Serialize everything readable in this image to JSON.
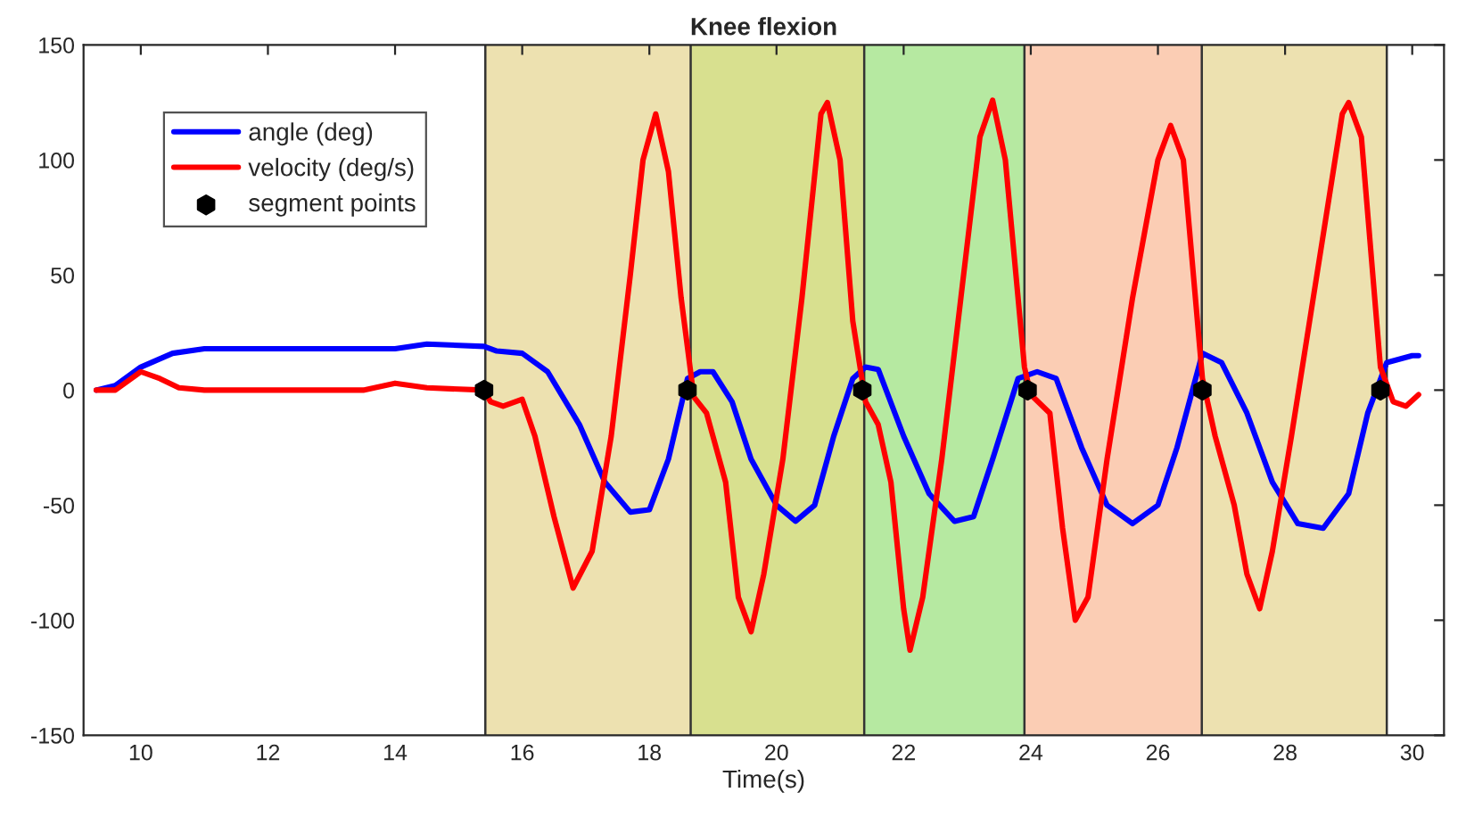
{
  "chart_data": {
    "type": "line",
    "title": "Knee flexion",
    "xlabel": "Time(s)",
    "xlim": [
      9.1,
      30.5
    ],
    "ylim": [
      -150,
      150
    ],
    "xticks": [
      10,
      12,
      14,
      16,
      18,
      20,
      22,
      24,
      26,
      28,
      30
    ],
    "yticks": [
      -150,
      -100,
      -50,
      0,
      50,
      100,
      150
    ],
    "grid": false,
    "legend": "top left",
    "series": [
      {
        "name": "angle (deg)",
        "color": "#0000ff",
        "marker": "none",
        "x": [
          9.3,
          9.6,
          10.0,
          10.5,
          11.0,
          14.0,
          14.5,
          15.4,
          15.6,
          16.0,
          16.4,
          16.9,
          17.3,
          17.7,
          18.0,
          18.3,
          18.6,
          18.8,
          19.0,
          19.3,
          19.6,
          20.0,
          20.3,
          20.6,
          20.9,
          21.2,
          21.4,
          21.6,
          22.0,
          22.4,
          22.8,
          23.1,
          23.4,
          23.8,
          24.1,
          24.4,
          24.8,
          25.2,
          25.6,
          26.0,
          26.3,
          26.7,
          27.0,
          27.4,
          27.8,
          28.2,
          28.6,
          29.0,
          29.3,
          29.6,
          30.0,
          30.1
        ],
        "values": [
          0,
          2,
          10,
          16,
          18,
          18,
          20,
          19,
          17,
          16,
          8,
          -15,
          -40,
          -53,
          -52,
          -30,
          5,
          8,
          8,
          -5,
          -30,
          -50,
          -57,
          -50,
          -20,
          5,
          10,
          9,
          -20,
          -45,
          -57,
          -55,
          -30,
          5,
          8,
          5,
          -25,
          -50,
          -58,
          -50,
          -25,
          16,
          12,
          -10,
          -40,
          -58,
          -60,
          -45,
          -10,
          12,
          15,
          15
        ]
      },
      {
        "name": "velocity (deg/s)",
        "color": "#ff0000",
        "marker": "none",
        "x": [
          9.3,
          9.6,
          10.0,
          10.3,
          10.6,
          11.0,
          13.5,
          14.0,
          14.5,
          15.4,
          15.5,
          15.7,
          16.0,
          16.2,
          16.5,
          16.8,
          17.1,
          17.4,
          17.7,
          17.9,
          18.1,
          18.3,
          18.5,
          18.7,
          18.9,
          19.2,
          19.4,
          19.6,
          19.8,
          20.1,
          20.4,
          20.7,
          20.8,
          21.0,
          21.2,
          21.4,
          21.6,
          21.8,
          22.0,
          22.1,
          22.3,
          22.6,
          22.9,
          23.2,
          23.4,
          23.6,
          23.9,
          24.0,
          24.3,
          24.5,
          24.7,
          24.9,
          25.2,
          25.6,
          26.0,
          26.2,
          26.4,
          26.7,
          26.9,
          27.2,
          27.4,
          27.6,
          27.8,
          28.1,
          28.5,
          28.9,
          29.0,
          29.2,
          29.5,
          29.7,
          29.9,
          30.1
        ],
        "values": [
          0,
          0,
          8,
          5,
          1,
          0,
          0,
          3,
          1,
          0,
          -5,
          -7,
          -4,
          -20,
          -55,
          -86,
          -70,
          -20,
          50,
          100,
          120,
          95,
          40,
          -3,
          -10,
          -40,
          -90,
          -105,
          -80,
          -30,
          40,
          120,
          125,
          100,
          30,
          -5,
          -15,
          -40,
          -95,
          -113,
          -90,
          -30,
          40,
          110,
          126,
          100,
          10,
          -2,
          -10,
          -60,
          -100,
          -90,
          -30,
          40,
          100,
          115,
          100,
          5,
          -20,
          -50,
          -80,
          -95,
          -70,
          -20,
          50,
          120,
          125,
          110,
          10,
          -5,
          -7,
          -2
        ]
      },
      {
        "name": "segment points",
        "color": "#000000",
        "type": "scatter",
        "marker": "star",
        "x": [
          15.4,
          18.6,
          21.35,
          23.95,
          26.7,
          29.5
        ],
        "values": [
          0,
          0,
          0,
          0,
          0,
          0
        ]
      }
    ],
    "bands": [
      {
        "axis": "x",
        "from": 15.42,
        "to": 18.65,
        "color": "#ede1b0"
      },
      {
        "axis": "x",
        "from": 18.65,
        "to": 21.38,
        "color": "#d8e08f"
      },
      {
        "axis": "x",
        "from": 21.38,
        "to": 23.9,
        "color": "#b6e9a1"
      },
      {
        "axis": "x",
        "from": 23.9,
        "to": 26.69,
        "color": "#fbcdb4"
      },
      {
        "axis": "x",
        "from": 26.69,
        "to": 29.6,
        "color": "#ede1b0"
      }
    ],
    "ref_lines": [
      {
        "axis": "x",
        "value": 15.42,
        "color": "#333333",
        "line_style": "solid"
      },
      {
        "axis": "x",
        "value": 18.65,
        "color": "#333333",
        "line_style": "solid"
      },
      {
        "axis": "x",
        "value": 21.38,
        "color": "#333333",
        "line_style": "solid"
      },
      {
        "axis": "x",
        "value": 23.9,
        "color": "#333333",
        "line_style": "solid"
      },
      {
        "axis": "x",
        "value": 26.69,
        "color": "#333333",
        "line_style": "solid"
      },
      {
        "axis": "x",
        "value": 29.6,
        "color": "#333333",
        "line_style": "solid"
      }
    ]
  }
}
